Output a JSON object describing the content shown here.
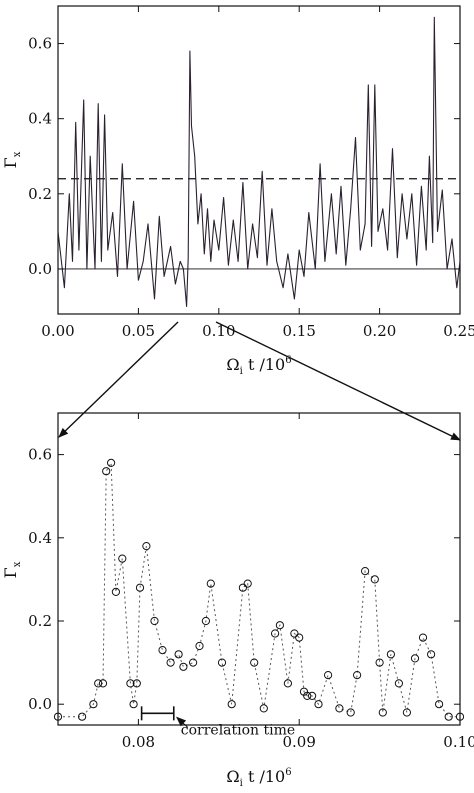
{
  "chart_data": [
    {
      "type": "line",
      "title": "",
      "xlabel": "Ω",
      "xlabel_sub": "i",
      "xlabel_rest": " t /10",
      "xlabel_sup": "6",
      "ylabel": "Γ",
      "ylabel_sub": "x",
      "xlim": [
        0.0,
        0.25
      ],
      "ylim": [
        -0.12,
        0.7
      ],
      "xticks": [
        0.0,
        0.05,
        0.1,
        0.15,
        0.2,
        0.25
      ],
      "xtick_labels": [
        "0.00",
        "0.05",
        "0.10",
        "0.15",
        "0.20",
        "0.25"
      ],
      "yticks": [
        0.0,
        0.2,
        0.4,
        0.6
      ],
      "ytick_labels": [
        "0.0",
        "0.2",
        "0.4",
        "0.6"
      ],
      "threshold": 0.24,
      "series": [
        {
          "values_x": [
            0.0,
            0.004,
            0.007,
            0.009,
            0.011,
            0.013,
            0.016,
            0.018,
            0.02,
            0.023,
            0.025,
            0.027,
            0.029,
            0.031,
            0.034,
            0.037,
            0.04,
            0.043,
            0.047,
            0.05,
            0.053,
            0.056,
            0.06,
            0.063,
            0.066,
            0.07,
            0.073,
            0.076,
            0.078,
            0.08,
            0.081,
            0.082,
            0.083,
            0.085,
            0.087,
            0.089,
            0.091,
            0.093,
            0.095,
            0.097,
            0.1,
            0.103,
            0.106,
            0.109,
            0.112,
            0.115,
            0.118,
            0.121,
            0.124,
            0.127,
            0.13,
            0.133,
            0.136,
            0.14,
            0.143,
            0.147,
            0.15,
            0.153,
            0.156,
            0.16,
            0.163,
            0.166,
            0.17,
            0.173,
            0.176,
            0.179,
            0.182,
            0.185,
            0.188,
            0.191,
            0.193,
            0.195,
            0.197,
            0.199,
            0.202,
            0.205,
            0.208,
            0.211,
            0.214,
            0.217,
            0.22,
            0.223,
            0.226,
            0.229,
            0.231,
            0.233,
            0.234,
            0.236,
            0.239,
            0.242,
            0.245,
            0.248,
            0.25
          ],
          "values_y": [
            0.1,
            -0.05,
            0.2,
            0.02,
            0.39,
            0.05,
            0.45,
            0.0,
            0.3,
            0.0,
            0.44,
            0.02,
            0.41,
            0.05,
            0.15,
            -0.02,
            0.28,
            0.0,
            0.18,
            -0.03,
            0.02,
            0.12,
            -0.08,
            0.14,
            -0.02,
            0.06,
            -0.04,
            0.02,
            0.0,
            -0.1,
            0.03,
            0.58,
            0.38,
            0.3,
            0.12,
            0.2,
            0.04,
            0.16,
            0.02,
            0.13,
            0.05,
            0.19,
            0.01,
            0.13,
            0.02,
            0.23,
            0.0,
            0.12,
            0.03,
            0.26,
            0.01,
            0.16,
            0.02,
            -0.05,
            0.04,
            -0.08,
            0.05,
            -0.02,
            0.15,
            0.0,
            0.28,
            0.02,
            0.2,
            0.04,
            0.22,
            0.01,
            0.16,
            0.35,
            0.05,
            0.12,
            0.49,
            0.06,
            0.49,
            0.1,
            0.16,
            0.05,
            0.32,
            0.03,
            0.2,
            0.08,
            0.2,
            0.01,
            0.22,
            0.05,
            0.3,
            0.07,
            0.67,
            0.1,
            0.21,
            0.0,
            0.08,
            -0.05,
            0.02
          ]
        }
      ]
    },
    {
      "type": "scatter",
      "title": "",
      "xlabel": "Ω",
      "xlabel_sub": "i",
      "xlabel_rest": " t /10",
      "xlabel_sup": "6",
      "ylabel": "Γ",
      "ylabel_sub": "x",
      "xlim": [
        0.075,
        0.1
      ],
      "ylim": [
        -0.05,
        0.7
      ],
      "xticks": [
        0.08,
        0.09,
        0.1
      ],
      "xtick_labels": [
        "0.08",
        "0.09",
        "0.10"
      ],
      "yticks": [
        0.0,
        0.2,
        0.4,
        0.6
      ],
      "ytick_labels": [
        "0.0",
        "0.2",
        "0.4",
        "0.6"
      ],
      "annotation": "correlation time",
      "correlation_bar": [
        0.0802,
        0.0822
      ],
      "correlation_bar_y": -0.022,
      "series": [
        {
          "values_x": [
            0.075,
            0.0765,
            0.0772,
            0.0775,
            0.0778,
            0.078,
            0.0783,
            0.0786,
            0.079,
            0.0795,
            0.0797,
            0.0799,
            0.0801,
            0.0805,
            0.081,
            0.0815,
            0.082,
            0.0825,
            0.0828,
            0.0834,
            0.0838,
            0.0842,
            0.0845,
            0.0852,
            0.0858,
            0.0865,
            0.0868,
            0.0872,
            0.0878,
            0.0885,
            0.0888,
            0.0893,
            0.0897,
            0.09,
            0.0903,
            0.0905,
            0.0908,
            0.0912,
            0.0918,
            0.0925,
            0.0932,
            0.0936,
            0.0941,
            0.0947,
            0.095,
            0.0952,
            0.0957,
            0.0962,
            0.0967,
            0.0972,
            0.0977,
            0.0982,
            0.0987,
            0.0993,
            0.1
          ],
          "values_y": [
            -0.03,
            -0.03,
            0.0,
            0.05,
            0.05,
            0.56,
            0.58,
            0.27,
            0.35,
            0.05,
            0.0,
            0.05,
            0.28,
            0.38,
            0.2,
            0.13,
            0.1,
            0.12,
            0.09,
            0.1,
            0.14,
            0.2,
            0.29,
            0.1,
            0.0,
            0.28,
            0.29,
            0.1,
            -0.01,
            0.17,
            0.19,
            0.05,
            0.17,
            0.16,
            0.03,
            0.02,
            0.02,
            0.0,
            0.07,
            -0.01,
            -0.02,
            0.07,
            0.32,
            0.3,
            0.1,
            -0.02,
            0.12,
            0.05,
            -0.02,
            0.11,
            0.16,
            0.12,
            0.0,
            -0.03,
            -0.03
          ]
        }
      ]
    }
  ]
}
